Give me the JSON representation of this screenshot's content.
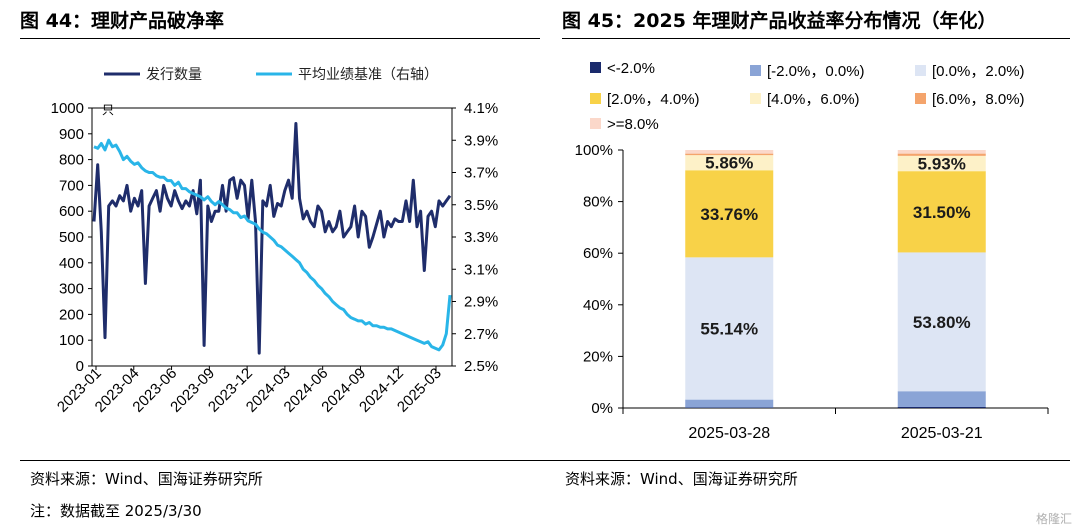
{
  "left_title": "图 44：理财产品破净率",
  "right_title": "图 45：2025 年理财产品收益率分布情况（年化）",
  "left_source": "资料来源：Wind、国海证券研究所",
  "right_source": "资料来源：Wind、国海证券研究所",
  "note": "注：数据截至 2025/3/30",
  "watermark": "格隆汇",
  "chart_data": [
    {
      "type": "line",
      "legend": [
        "发行数量",
        "平均业绩基准（右轴）"
      ],
      "left_unit": "只",
      "ylim_left": [
        0,
        1000
      ],
      "yticks_left": [
        "0",
        "100",
        "200",
        "300",
        "400",
        "500",
        "600",
        "700",
        "800",
        "900",
        "1000"
      ],
      "ylim_right": [
        2.5,
        4.1
      ],
      "yticks_right": [
        "2.5%",
        "2.7%",
        "2.9%",
        "3.1%",
        "3.3%",
        "3.5%",
        "3.7%",
        "3.9%",
        "4.1%"
      ],
      "x_ticks": [
        "2023-01",
        "2023-04",
        "2023-06",
        "2023-09",
        "2023-12",
        "2024-03",
        "2024-06",
        "2024-09",
        "2024-12",
        "2025-03"
      ],
      "series": [
        {
          "name": "发行数量",
          "color": "#1f2d6b",
          "axis": "left",
          "values": [
            560,
            780,
            520,
            110,
            620,
            640,
            620,
            660,
            640,
            700,
            600,
            650,
            620,
            680,
            320,
            620,
            650,
            680,
            600,
            700,
            650,
            620,
            680,
            640,
            610,
            640,
            620,
            680,
            590,
            720,
            80,
            620,
            560,
            600,
            600,
            700,
            600,
            720,
            730,
            650,
            720,
            700,
            570,
            720,
            560,
            50,
            640,
            620,
            700,
            580,
            630,
            620,
            680,
            720,
            650,
            940,
            650,
            570,
            600,
            560,
            540,
            620,
            600,
            520,
            560,
            520,
            540,
            600,
            500,
            520,
            540,
            620,
            500,
            600,
            580,
            460,
            500,
            550,
            600,
            500,
            560,
            540,
            570,
            560,
            560,
            640,
            560,
            720,
            540,
            600,
            370,
            580,
            600,
            540,
            640,
            620,
            640,
            660
          ]
        },
        {
          "name": "平均业绩基准（右轴）",
          "color": "#29b5e8",
          "axis": "right",
          "values": [
            3.86,
            3.85,
            3.88,
            3.84,
            3.9,
            3.86,
            3.87,
            3.83,
            3.78,
            3.8,
            3.77,
            3.75,
            3.76,
            3.73,
            3.71,
            3.7,
            3.7,
            3.68,
            3.67,
            3.67,
            3.65,
            3.65,
            3.62,
            3.64,
            3.6,
            3.6,
            3.58,
            3.57,
            3.56,
            3.55,
            3.53,
            3.55,
            3.52,
            3.5,
            3.52,
            3.5,
            3.48,
            3.47,
            3.45,
            3.45,
            3.42,
            3.43,
            3.4,
            3.39,
            3.38,
            3.35,
            3.33,
            3.32,
            3.3,
            3.28,
            3.25,
            3.24,
            3.22,
            3.2,
            3.18,
            3.16,
            3.14,
            3.1,
            3.08,
            3.05,
            3.03,
            3.0,
            2.98,
            2.95,
            2.93,
            2.9,
            2.88,
            2.86,
            2.85,
            2.82,
            2.8,
            2.79,
            2.78,
            2.78,
            2.76,
            2.77,
            2.75,
            2.75,
            2.74,
            2.74,
            2.73,
            2.73,
            2.72,
            2.71,
            2.7,
            2.69,
            2.68,
            2.67,
            2.66,
            2.65,
            2.64,
            2.65,
            2.62,
            2.61,
            2.6,
            2.63,
            2.7,
            2.94
          ]
        }
      ]
    },
    {
      "type": "bar",
      "stacked": true,
      "categories": [
        "2025-03-28",
        "2025-03-21"
      ],
      "ylim": [
        0,
        100
      ],
      "yticks": [
        "0%",
        "20%",
        "40%",
        "60%",
        "80%",
        "100%"
      ],
      "series": [
        {
          "name": "<-2.0%",
          "color": "#1a2a6c",
          "values": [
            0.15,
            0.4
          ]
        },
        {
          "name": "[-2.0%，0.0%)",
          "color": "#8aa4d6",
          "values": [
            3.1,
            6.1
          ]
        },
        {
          "name": "[0.0%，2.0%)",
          "color": "#dde5f4",
          "values": [
            55.14,
            53.8
          ]
        },
        {
          "name": "[2.0%，4.0%)",
          "color": "#f8d248",
          "values": [
            33.76,
            31.5
          ]
        },
        {
          "name": "[4.0%，6.0%)",
          "color": "#fdf1c8",
          "values": [
            5.86,
            5.93
          ]
        },
        {
          "name": "[6.0%，8.0%)",
          "color": "#f4a46c",
          "values": [
            0.59,
            0.87
          ]
        },
        {
          "name": ">=8.0%",
          "color": "#fbd8ca",
          "values": [
            1.4,
            1.4
          ]
        }
      ],
      "data_labels": [
        {
          "category": "2025-03-28",
          "series": "[0.0%，2.0%)",
          "text": "55.14%"
        },
        {
          "category": "2025-03-28",
          "series": "[2.0%，4.0%)",
          "text": "33.76%"
        },
        {
          "category": "2025-03-28",
          "series": "[4.0%，6.0%)",
          "text": "5.86%"
        },
        {
          "category": "2025-03-21",
          "series": "[0.0%，2.0%)",
          "text": "53.80%"
        },
        {
          "category": "2025-03-21",
          "series": "[2.0%，4.0%)",
          "text": "31.50%"
        },
        {
          "category": "2025-03-21",
          "series": "[4.0%，6.0%)",
          "text": "5.93%"
        }
      ]
    }
  ]
}
